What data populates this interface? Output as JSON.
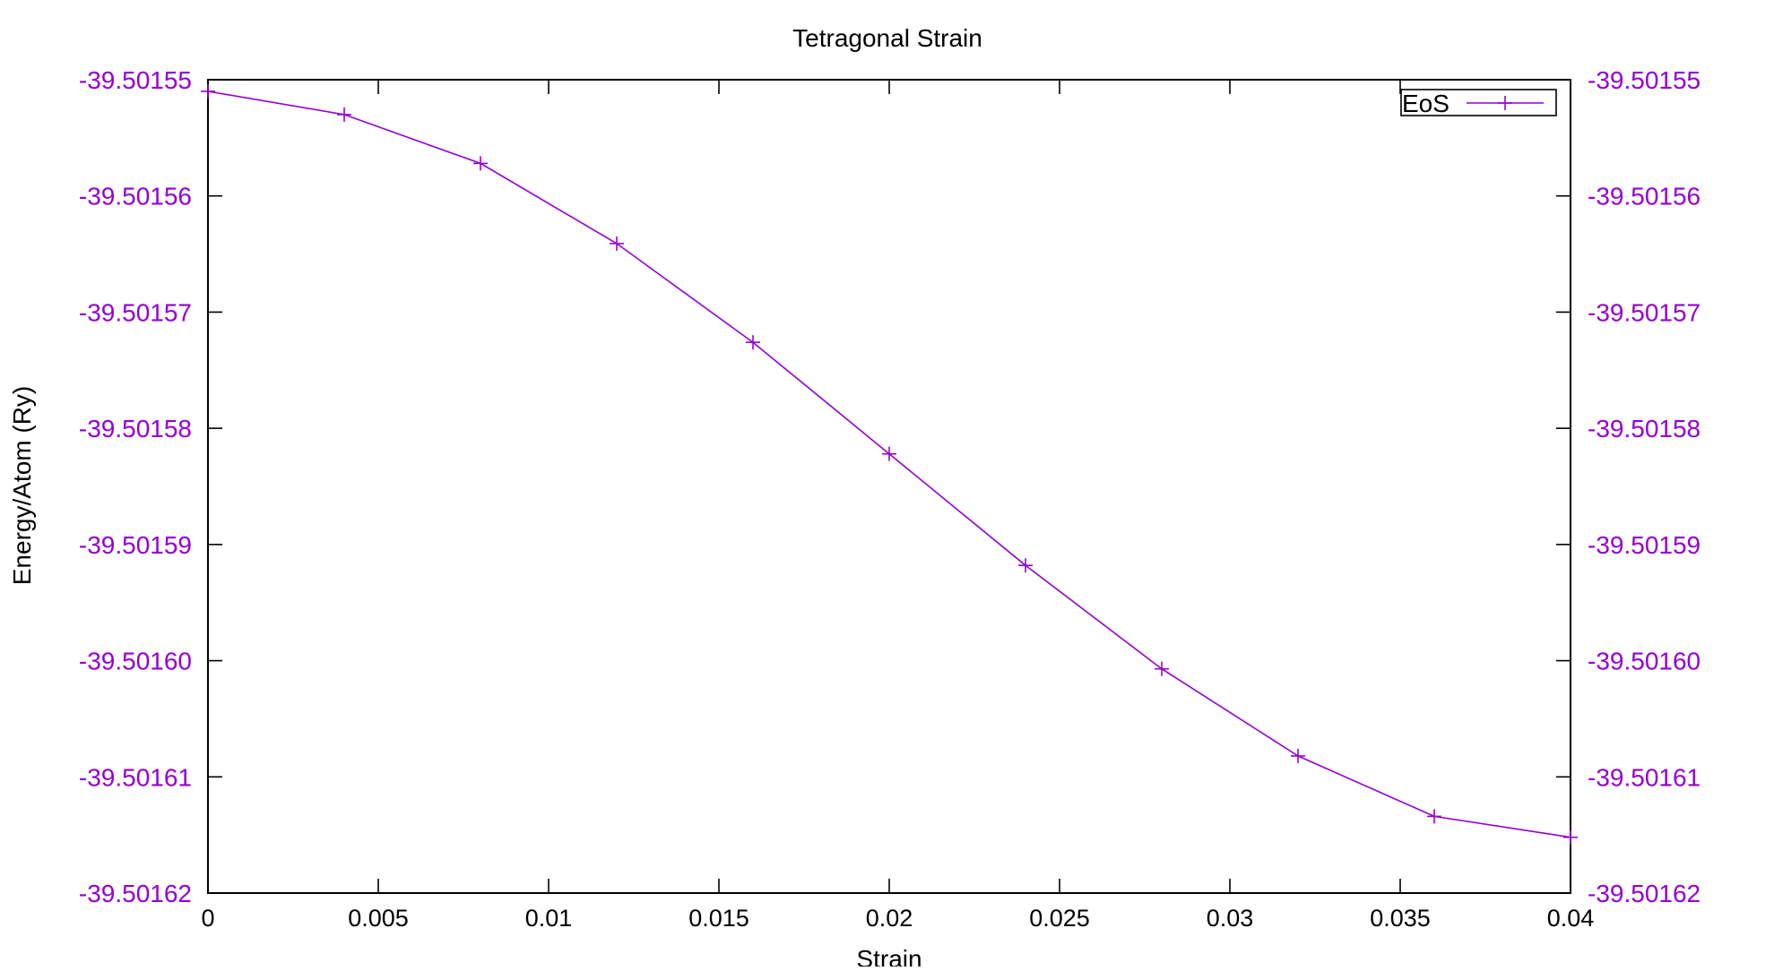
{
  "colors": {
    "series": "#9400d3",
    "axis": "#000000",
    "y_tick_labels": "#9400d3",
    "background": "#ffffff"
  },
  "chart_data": {
    "type": "line",
    "title": "Tetragonal Strain",
    "xlabel": "Strain",
    "ylabel": "Energy/Atom (Ry)",
    "xlim": [
      0,
      0.04
    ],
    "ylim": [
      -39.50162,
      -39.50155
    ],
    "x_ticks": [
      0,
      0.005,
      0.01,
      0.015,
      0.02,
      0.025,
      0.03,
      0.035,
      0.04
    ],
    "x_tick_labels": [
      "0",
      "0.005",
      "0.01",
      "0.015",
      "0.02",
      "0.025",
      "0.03",
      "0.035",
      "0.04"
    ],
    "y_ticks": [
      -39.50155,
      -39.50156,
      -39.50157,
      -39.50158,
      -39.50159,
      -39.5016,
      -39.50161,
      -39.50162
    ],
    "y_tick_labels": [
      "-39.50155",
      "-39.50156",
      "-39.50157",
      "-39.50158",
      "-39.50159",
      "-39.50160",
      "-39.50161",
      "-39.50162"
    ],
    "y2_tick_labels": [
      "-39.50155",
      "-39.50156",
      "-39.50157",
      "-39.50158",
      "-39.50159",
      "-39.50160",
      "-39.50161",
      "-39.50162"
    ],
    "grid": false,
    "legend_position": "top-right",
    "series": [
      {
        "name": "EoS",
        "marker": "plus",
        "x": [
          0,
          0.004,
          0.008,
          0.012,
          0.016,
          0.02,
          0.024,
          0.028,
          0.032,
          0.036,
          0.04
        ],
        "y": [
          -39.501551,
          -39.501553,
          -39.5015572,
          -39.5015641,
          -39.5015726,
          -39.5015822,
          -39.5015918,
          -39.5016007,
          -39.5016082,
          -39.5016134,
          -39.5016152
        ]
      }
    ]
  }
}
